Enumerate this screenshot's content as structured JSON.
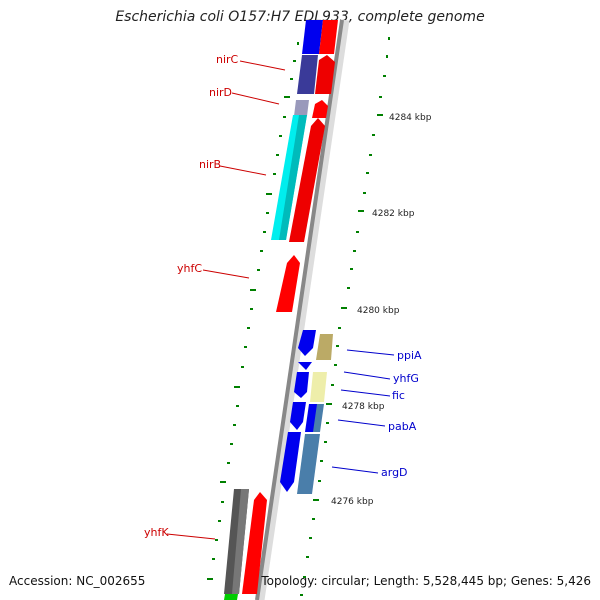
{
  "title": "Escherichia coli O157:H7 EDL933, complete genome",
  "accession": "Accession: NC_002655",
  "topology": "Topology: circular; Length: 5,528,445 bp; Genes: 5,426",
  "colors": {
    "forward_cds": "#ff0000",
    "reverse_cds": "#0000ee",
    "label_red": "#cc0000",
    "label_blue": "#0000cc",
    "tick_green": "#008000",
    "backbone": "#888888"
  },
  "kbp_ticks": [
    "4284 kbp",
    "4282 kbp",
    "4280 kbp",
    "4278 kbp",
    "4276 kbp"
  ],
  "left_labels": [
    "nirC",
    "nirD",
    "nirB",
    "yhfC",
    "yhfK"
  ],
  "right_labels": [
    "ppiA",
    "yhfG",
    "fic",
    "pabA",
    "argD"
  ]
}
